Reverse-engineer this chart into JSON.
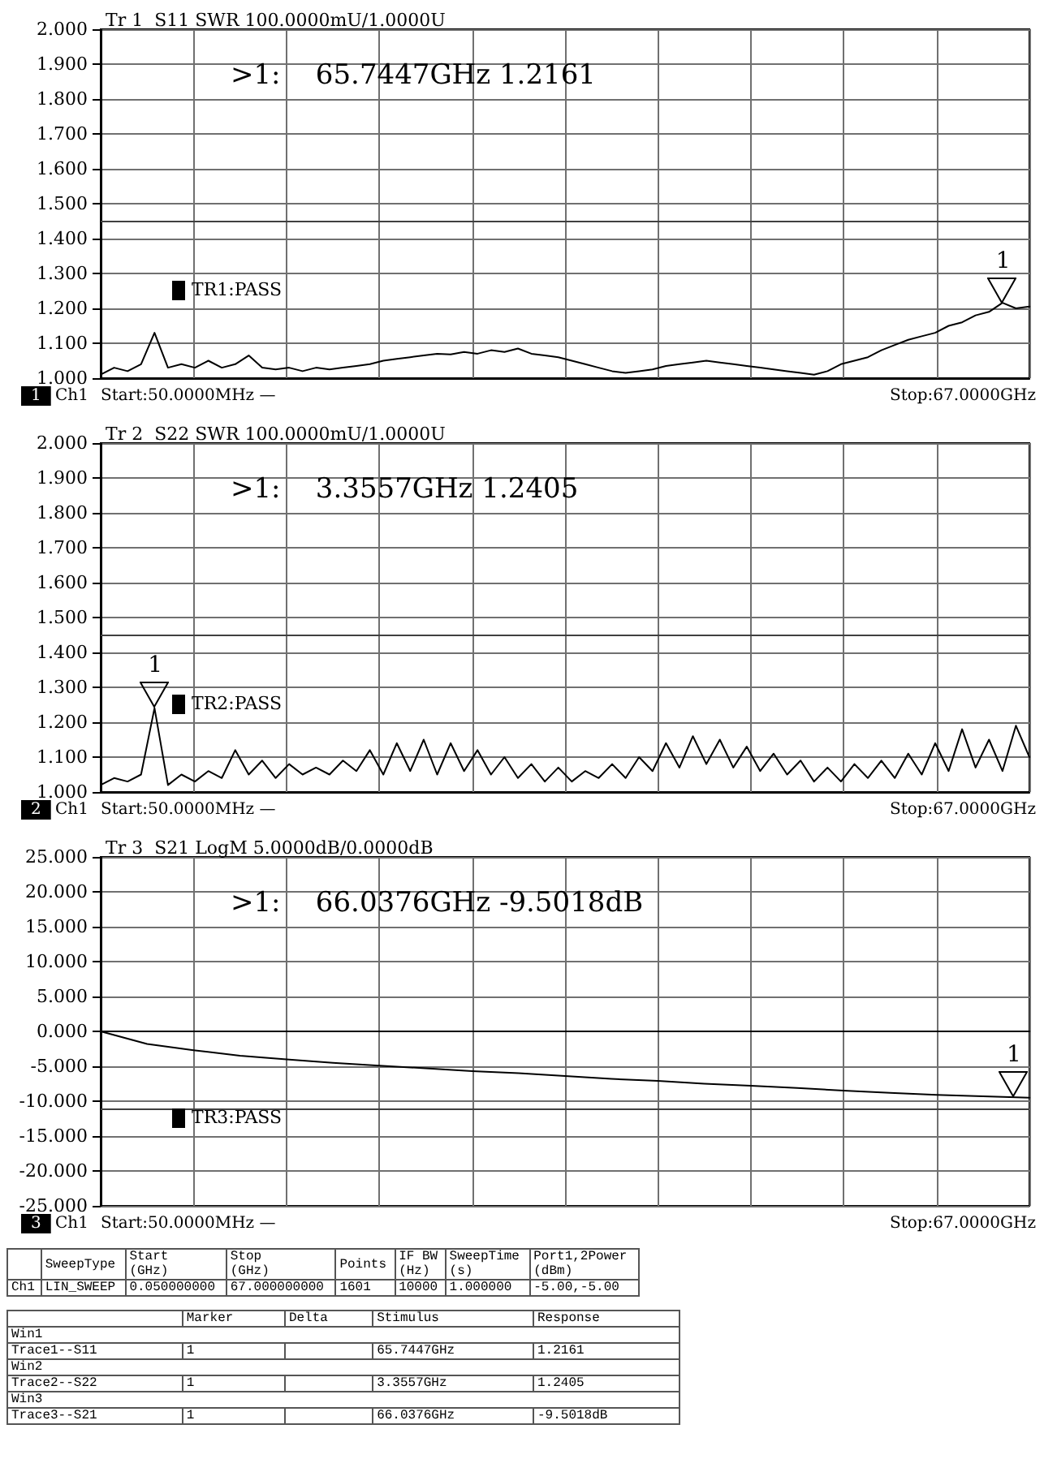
{
  "chart_data": [
    {
      "type": "line",
      "title": "Tr 1  S11 SWR 100.0000mU/1.0000U",
      "grid": true,
      "marker": "none",
      "line_style": "solid",
      "tick_labels": "y",
      "categories": [
        null,
        null,
        null,
        null,
        null,
        null,
        null,
        null,
        null,
        null,
        null,
        null,
        null,
        null,
        null,
        null,
        null,
        null,
        null,
        null,
        null,
        null,
        null,
        null,
        null,
        null,
        null,
        null,
        null,
        null,
        null,
        null,
        null,
        null,
        null,
        null,
        null,
        null,
        null,
        null,
        null,
        null,
        null,
        null,
        null,
        null,
        null,
        null,
        null,
        null,
        null,
        null,
        null,
        null,
        null,
        null,
        null,
        null,
        null,
        null,
        null,
        null,
        null,
        null,
        null,
        null,
        null,
        null,
        null,
        null
      ],
      "ylim": [
        1,
        2
      ],
      "yticks": [
        {
          "value": 1,
          "label": "1.000"
        },
        {
          "value": 1.1,
          "label": "1.100"
        },
        {
          "value": 1.2,
          "label": "1.200"
        },
        {
          "value": 1.3,
          "label": "1.300"
        },
        {
          "value": 1.4,
          "label": "1.400"
        },
        {
          "value": 1.5,
          "label": "1.500"
        },
        {
          "value": 1.6,
          "label": "1.600"
        },
        {
          "value": 1.7,
          "label": "1.700"
        },
        {
          "value": 1.8,
          "label": "1.800"
        },
        {
          "value": 1.9,
          "label": "1.900"
        },
        {
          "value": 2,
          "label": "2.000"
        }
      ],
      "ref_lines": [
        {
          "axis": "y",
          "value": 1.45,
          "color": "#404040"
        }
      ],
      "series": [
        {
          "color": "#000000",
          "values": [
            1.01,
            1.03,
            1.02,
            1.04,
            1.13,
            1.03,
            1.04,
            1.03,
            1.05,
            1.03,
            1.04,
            1.065,
            1.03,
            1.025,
            1.03,
            1.02,
            1.03,
            1.025,
            1.03,
            1.035,
            1.04,
            1.05,
            1.055,
            1.06,
            1.065,
            1.07,
            1.068,
            1.075,
            1.07,
            1.08,
            1.075,
            1.085,
            1.07,
            1.065,
            1.06,
            1.05,
            1.04,
            1.03,
            1.02,
            1.015,
            1.02,
            1.025,
            1.035,
            1.04,
            1.045,
            1.05,
            1.045,
            1.04,
            1.035,
            1.03,
            1.025,
            1.02,
            1.015,
            1.01,
            1.02,
            1.04,
            1.05,
            1.06,
            1.08,
            1.095,
            1.11,
            1.12,
            1.13,
            1.15,
            1.16,
            1.18,
            1.19,
            1.2161,
            1.2,
            1.205
          ]
        }
      ],
      "annotations": [
        ">1:    65.7447GHz 1.2161",
        {
          "text": "1",
          "y": 1.2161
        },
        "TR1:PASS",
        "1",
        "Ch1",
        "Start:50.0000MHz —",
        "Stop:67.0000GHz"
      ]
    },
    {
      "type": "line",
      "title": "Tr 2  S22 SWR 100.0000mU/1.0000U",
      "grid": true,
      "marker": "none",
      "line_style": "solid",
      "tick_labels": "y",
      "categories": [
        null,
        null,
        null,
        null,
        null,
        null,
        null,
        null,
        null,
        null,
        null,
        null,
        null,
        null,
        null,
        null,
        null,
        null,
        null,
        null,
        null,
        null,
        null,
        null,
        null,
        null,
        null,
        null,
        null,
        null,
        null,
        null,
        null,
        null,
        null,
        null,
        null,
        null,
        null,
        null,
        null,
        null,
        null,
        null,
        null,
        null,
        null,
        null,
        null,
        null,
        null,
        null,
        null,
        null,
        null,
        null,
        null,
        null,
        null,
        null,
        null,
        null,
        null,
        null,
        null,
        null,
        null,
        null,
        null,
        null
      ],
      "ylim": [
        1,
        2
      ],
      "yticks": [
        {
          "value": 1,
          "label": "1.000"
        },
        {
          "value": 1.1,
          "label": "1.100"
        },
        {
          "value": 1.2,
          "label": "1.200"
        },
        {
          "value": 1.3,
          "label": "1.300"
        },
        {
          "value": 1.4,
          "label": "1.400"
        },
        {
          "value": 1.5,
          "label": "1.500"
        },
        {
          "value": 1.6,
          "label": "1.600"
        },
        {
          "value": 1.7,
          "label": "1.700"
        },
        {
          "value": 1.8,
          "label": "1.800"
        },
        {
          "value": 1.9,
          "label": "1.900"
        },
        {
          "value": 2,
          "label": "2.000"
        }
      ],
      "ref_lines": [
        {
          "axis": "y",
          "value": 1.45,
          "color": "#404040"
        }
      ],
      "series": [
        {
          "color": "#000000",
          "values": [
            1.02,
            1.04,
            1.03,
            1.05,
            1.2405,
            1.02,
            1.05,
            1.03,
            1.06,
            1.04,
            1.12,
            1.05,
            1.09,
            1.04,
            1.08,
            1.05,
            1.07,
            1.05,
            1.09,
            1.06,
            1.12,
            1.05,
            1.14,
            1.06,
            1.15,
            1.05,
            1.14,
            1.06,
            1.12,
            1.05,
            1.1,
            1.04,
            1.08,
            1.03,
            1.07,
            1.03,
            1.06,
            1.04,
            1.08,
            1.04,
            1.1,
            1.06,
            1.14,
            1.07,
            1.16,
            1.08,
            1.15,
            1.07,
            1.13,
            1.06,
            1.11,
            1.05,
            1.09,
            1.03,
            1.07,
            1.03,
            1.08,
            1.04,
            1.09,
            1.04,
            1.11,
            1.05,
            1.14,
            1.06,
            1.18,
            1.07,
            1.15,
            1.06,
            1.19,
            1.1
          ]
        }
      ],
      "annotations": [
        ">1:    3.3557GHz 1.2405",
        {
          "text": "1",
          "y": 1.2405
        },
        "TR2:PASS",
        "2",
        "Ch1",
        "Start:50.0000MHz —",
        "Stop:67.0000GHz"
      ]
    },
    {
      "type": "line",
      "title": "Tr 3  S21 LogM 5.0000dB/0.0000dB",
      "grid": true,
      "marker": "none",
      "line_style": "solid",
      "tick_labels": "y",
      "categories": [
        null,
        null,
        null,
        null,
        null,
        null,
        null,
        null,
        null,
        null,
        null,
        null,
        null,
        null,
        null,
        null,
        null,
        null,
        null,
        null,
        null
      ],
      "ylim": [
        -25,
        25
      ],
      "yticks": [
        {
          "value": -25,
          "label": "-25.000"
        },
        {
          "value": -20,
          "label": "-20.000"
        },
        {
          "value": -15,
          "label": "-15.000"
        },
        {
          "value": -10,
          "label": "-10.000"
        },
        {
          "value": -5,
          "label": "-5.000"
        },
        {
          "value": 0,
          "label": "0.000"
        },
        {
          "value": 5,
          "label": "5.000"
        },
        {
          "value": 10,
          "label": "10.000"
        },
        {
          "value": 15,
          "label": "15.000"
        },
        {
          "value": 20,
          "label": "20.000"
        },
        {
          "value": 25,
          "label": "25.000"
        }
      ],
      "ref_lines": [
        {
          "axis": "y",
          "value": -11,
          "color": "#404040"
        }
      ],
      "series": [
        {
          "color": "#000000",
          "values": [
            0,
            -1.8,
            -2.7,
            -3.5,
            -4,
            -4.5,
            -4.9,
            -5.3,
            -5.7,
            -6,
            -6.4,
            -6.8,
            -7.1,
            -7.5,
            -7.8,
            -8.1,
            -8.5,
            -8.8,
            -9.1,
            -9.3,
            -9.5018
          ]
        }
      ],
      "annotations": [
        ">1:    66.0376GHz -9.5018dB",
        {
          "text": "1",
          "y": -9.5018
        },
        "TR3:PASS",
        "3",
        "Ch1",
        "Start:50.0000MHz —",
        "Stop:67.0000GHz"
      ]
    },
    {
      "type": "other",
      "annotations": [
        "SweepType",
        "Start\n(GHz)",
        "Stop\n(GHz)",
        "Points",
        "IF BW\n(Hz)",
        "SweepTime\n(s)",
        "Port1,2Power\n(dBm)",
        "Ch1",
        "LIN_SWEEP",
        "0.050000000",
        "67.000000000",
        "1601",
        "10000",
        "1.000000",
        "-5.00,-5.00",
        "Marker",
        "Delta",
        "Stimulus",
        "Response",
        "Win1",
        "Trace1--S11",
        "1",
        "65.7447GHz",
        "1.2161",
        "Win2",
        "Trace2--S22",
        "1",
        "3.3557GHz",
        "1.2405",
        "Win3",
        "Trace3--S21",
        "1",
        "66.0376GHz",
        "-9.5018dB"
      ]
    }
  ]
}
